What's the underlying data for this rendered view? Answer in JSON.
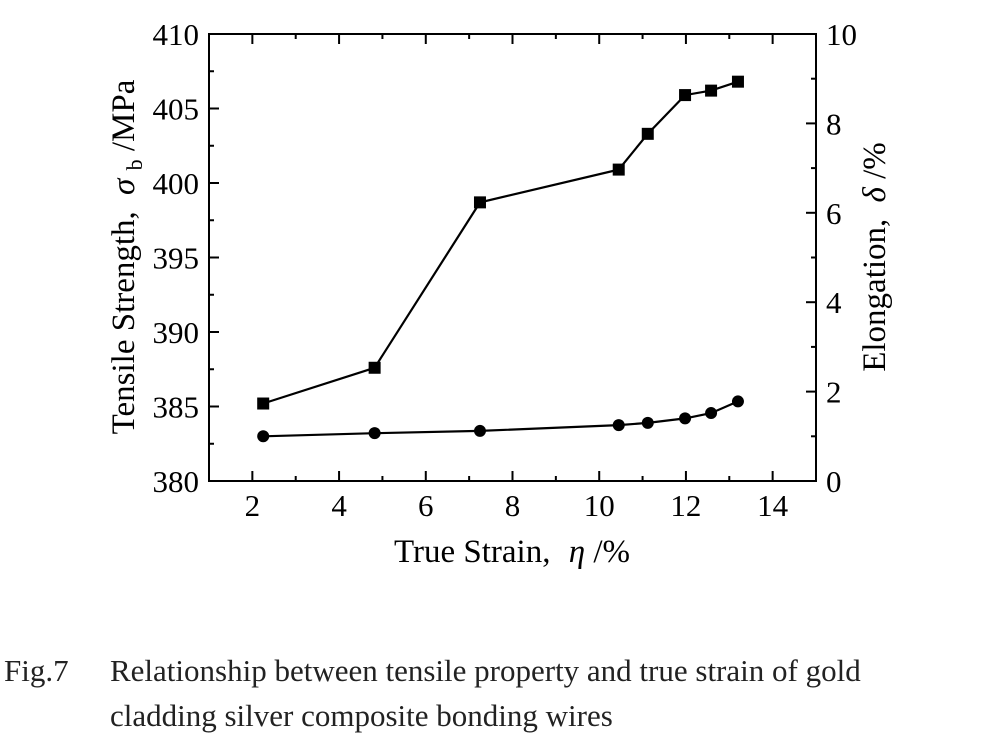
{
  "chart_data": {
    "type": "line",
    "x": [
      2.25,
      4.82,
      7.25,
      10.45,
      11.12,
      11.98,
      12.58,
      13.2
    ],
    "xlabel": "True Strain,",
    "xlabel_symbol": "η",
    "xlabel_unit": "/%",
    "xlim": [
      1,
      15
    ],
    "xticks": [
      "2",
      "4",
      "6",
      "8",
      "10",
      "12",
      "14"
    ],
    "ylabel_left": "Tensile Strength,",
    "ylabel_left_symbol": "σ",
    "ylabel_left_sub": "b",
    "ylabel_left_unit": "/MPa",
    "ylim_left": [
      380,
      410
    ],
    "yticks_left": [
      "380",
      "385",
      "390",
      "395",
      "400",
      "405",
      "410"
    ],
    "ylabel_right": "Elongation,",
    "ylabel_right_symbol": "δ",
    "ylabel_right_unit": "/%",
    "ylim_right": [
      0,
      10
    ],
    "yticks_right": [
      "0",
      "2",
      "4",
      "6",
      "8",
      "10"
    ],
    "grid": false,
    "series": [
      {
        "axis": "left",
        "marker": "square",
        "values": [
          385.2,
          387.6,
          398.7,
          400.9,
          403.3,
          405.9,
          406.2,
          406.8
        ]
      },
      {
        "axis": "right",
        "marker": "circle",
        "values": [
          1.0,
          1.07,
          1.12,
          1.25,
          1.3,
          1.4,
          1.52,
          1.78
        ]
      }
    ]
  },
  "caption": {
    "label": "Fig.7",
    "line1": "Relationship between tensile property and true strain of gold",
    "line2": "cladding silver composite bonding wires"
  }
}
